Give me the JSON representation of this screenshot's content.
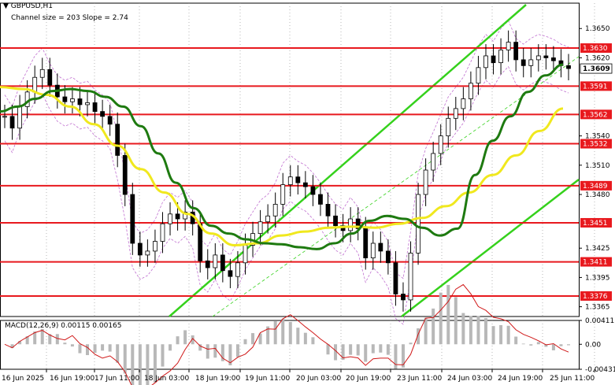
{
  "symbol_label": "GBPUSD,H1",
  "channel_label": "Channel size = 203 Slope = 2.74",
  "macd_label": "MACD(12,26,9) 0.00115 0.00165",
  "colors": {
    "level_line": "#e8191e",
    "channel": "#35d11c",
    "ma_fast": "#1e7a10",
    "ma_slow": "#f0e81e",
    "bands": "#c070d0",
    "candles": "#000000",
    "macd_hist": "#b8b8b8",
    "macd_signal": "#d01818",
    "current_price_bg": "#ffffff"
  },
  "chart_data": {
    "type": "candlestick",
    "instrument": "GBPUSD",
    "timeframe": "H1",
    "price_axis": {
      "min": 1.3355,
      "max": 1.3676,
      "ticks": [
        "1.3650",
        "1.3620",
        "1.3540",
        "1.3510",
        "1.3480",
        "1.3425",
        "1.3395",
        "1.3365"
      ]
    },
    "time_axis": {
      "labels": [
        "16 Jun 2025",
        "16 Jun 19:00",
        "17 Jun 11:00",
        "18 Jun 03:00",
        "18 Jun 19:00",
        "19 Jun 11:00",
        "20 Jun 03:00",
        "20 Jun 19:00",
        "23 Jun 11:00",
        "24 Jun 03:00",
        "24 Jun 19:00",
        "25 Jun 11:00"
      ]
    },
    "levels": [
      "1.3630",
      "1.3591",
      "1.3562",
      "1.3532",
      "1.3489",
      "1.3451",
      "1.3411",
      "1.3376"
    ],
    "current_price": "1.3609",
    "close_series": [
      1.356,
      1.3548,
      1.357,
      1.3585,
      1.36,
      1.3608,
      1.3592,
      1.358,
      1.3575,
      1.3578,
      1.3572,
      1.3574,
      1.3565,
      1.356,
      1.3552,
      1.352,
      1.348,
      1.343,
      1.3418,
      1.3422,
      1.3432,
      1.345,
      1.346,
      1.3455,
      1.3462,
      1.345,
      1.3412,
      1.3405,
      1.3418,
      1.3402,
      1.3396,
      1.341,
      1.3428,
      1.344,
      1.3452,
      1.3458,
      1.347,
      1.349,
      1.3498,
      1.3492,
      1.3488,
      1.348,
      1.347,
      1.3458,
      1.3448,
      1.3443,
      1.3455,
      1.3445,
      1.3415,
      1.343,
      1.3422,
      1.341,
      1.3378,
      1.3372,
      1.342,
      1.348,
      1.3505,
      1.3522,
      1.354,
      1.3558,
      1.3568,
      1.3578,
      1.3594,
      1.361,
      1.3622,
      1.3615,
      1.3628,
      1.3636,
      1.3618,
      1.3612,
      1.3618,
      1.3622,
      1.362,
      1.3617,
      1.3612,
      1.3609
    ],
    "ma_fast_series": [
      1.3565,
      1.357,
      1.3578,
      1.3586,
      1.3588,
      1.3586,
      1.358,
      1.357,
      1.355,
      1.3522,
      1.3492,
      1.3466,
      1.3448,
      1.344,
      1.3434,
      1.343,
      1.3429,
      1.3426,
      1.3424,
      1.343,
      1.344,
      1.3453,
      1.3458,
      1.3455,
      1.3446,
      1.3438,
      1.3445,
      1.35,
      1.3535,
      1.356,
      1.3585,
      1.3602,
      1.3613
    ],
    "ma_slow_series": [
      1.359,
      1.3588,
      1.3582,
      1.357,
      1.3552,
      1.353,
      1.3506,
      1.3482,
      1.346,
      1.344,
      1.3428,
      1.343,
      1.3438,
      1.3442,
      1.3446,
      1.3447,
      1.3446,
      1.345,
      1.3456,
      1.3468,
      1.3482,
      1.35,
      1.352,
      1.3545,
      1.3568
    ],
    "macd": {
      "params": "12,26,9",
      "value": 0.00115,
      "signal": 0.00165,
      "ticks": [
        "0.00411",
        "0.00",
        "-0.00431"
      ]
    }
  }
}
